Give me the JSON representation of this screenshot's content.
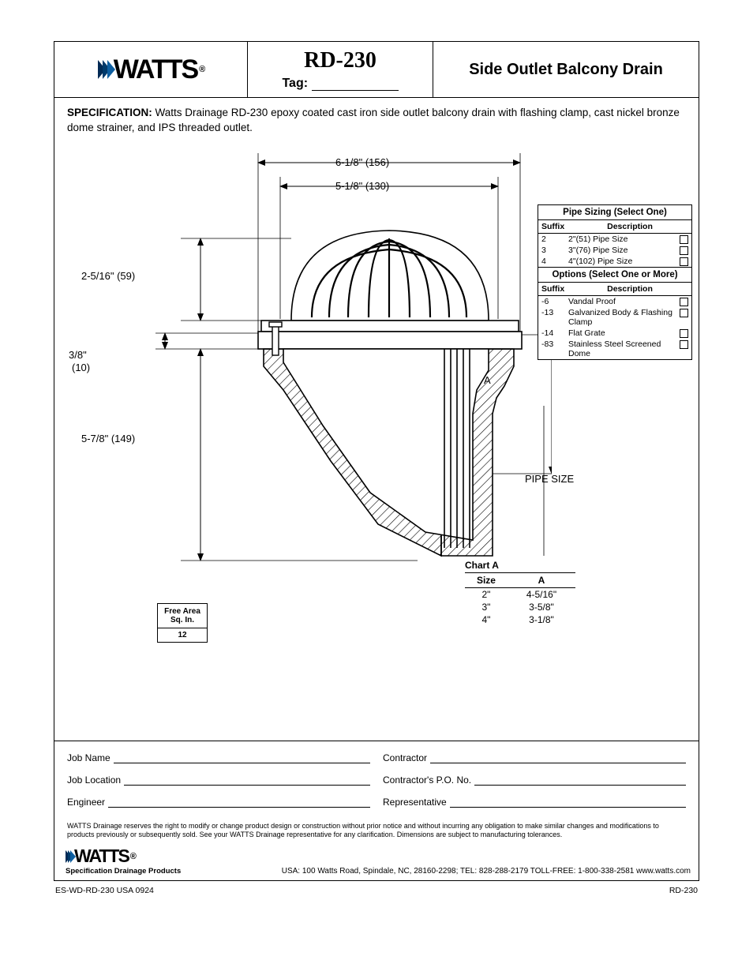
{
  "brand": "WATTS",
  "model": "RD-230",
  "tag_label": "Tag:",
  "product_title": "Side Outlet Balcony Drain",
  "spec_label": "SPECIFICATION:",
  "spec_text": "Watts Drainage RD-230 epoxy coated cast iron side outlet balcony drain with flashing clamp, cast nickel bronze dome strainer, and IPS threaded outlet.",
  "dims": {
    "top_width": "6-1/8\" (156)",
    "dome_width": "5-1/8\" (130)",
    "dome_height": "2-5/16\" (59)",
    "flange_h": "3/8\"",
    "flange_h2": "(10)",
    "body_height": "5-7/8\" (149)",
    "a_label": "A",
    "pipe_label": "PIPE SIZE"
  },
  "pipe_sizing": {
    "title": "Pipe Sizing (Select One)",
    "col_suffix": "Suffix",
    "col_desc": "Description",
    "rows": [
      {
        "suffix": "2",
        "desc": "2\"(51) Pipe Size"
      },
      {
        "suffix": "3",
        "desc": "3\"(76) Pipe Size"
      },
      {
        "suffix": "4",
        "desc": "4\"(102) Pipe Size"
      }
    ]
  },
  "options": {
    "title": "Options (Select One or More)",
    "rows": [
      {
        "suffix": "-6",
        "desc": "Vandal Proof"
      },
      {
        "suffix": "-13",
        "desc": "Galvanized Body & Flashing Clamp"
      },
      {
        "suffix": "-14",
        "desc": "Flat Grate"
      },
      {
        "suffix": "-83",
        "desc": "Stainless Steel Screened Dome"
      }
    ]
  },
  "chart_a": {
    "title": "Chart A",
    "col1": "Size",
    "col2": "A",
    "rows": [
      {
        "size": "2\"",
        "a": "4-5/16\""
      },
      {
        "size": "3\"",
        "a": "3-5/8\""
      },
      {
        "size": "4\"",
        "a": "3-1/8\""
      }
    ]
  },
  "free_area": {
    "label": "Free Area Sq. In.",
    "value": "12"
  },
  "fields": {
    "job_name": "Job Name",
    "contractor": "Contractor",
    "job_location": "Job Location",
    "po_no": "Contractor's P.O. No.",
    "engineer": "Engineer",
    "representative": "Representative"
  },
  "disclaimer": "WATTS Drainage reserves the right to modify or change product design or construction without prior notice and without incurring any obligation to make similar changes and modifications to products previously or subsequently sold.  See your WATTS Drainage representative for any clarification.   Dimensions are subject to manufacturing tolerances.",
  "footer": {
    "tagline": "Specification Drainage Products",
    "addr": "USA: 100 Watts Road, Spindale, NC, 28160-2298; TEL: 828-288-2179 TOLL-FREE: 1-800-338-2581 www.watts.com"
  },
  "doc_code_left": "ES-WD-RD-230 USA 0924",
  "doc_code_right": "RD-230",
  "drawing_svg": {
    "stroke": "#000000",
    "fill_hatch": "#000000",
    "arrow_color": "#000000",
    "dome_fill": "#ffffff",
    "line_width_main": 1.6,
    "line_width_dim": 1
  }
}
